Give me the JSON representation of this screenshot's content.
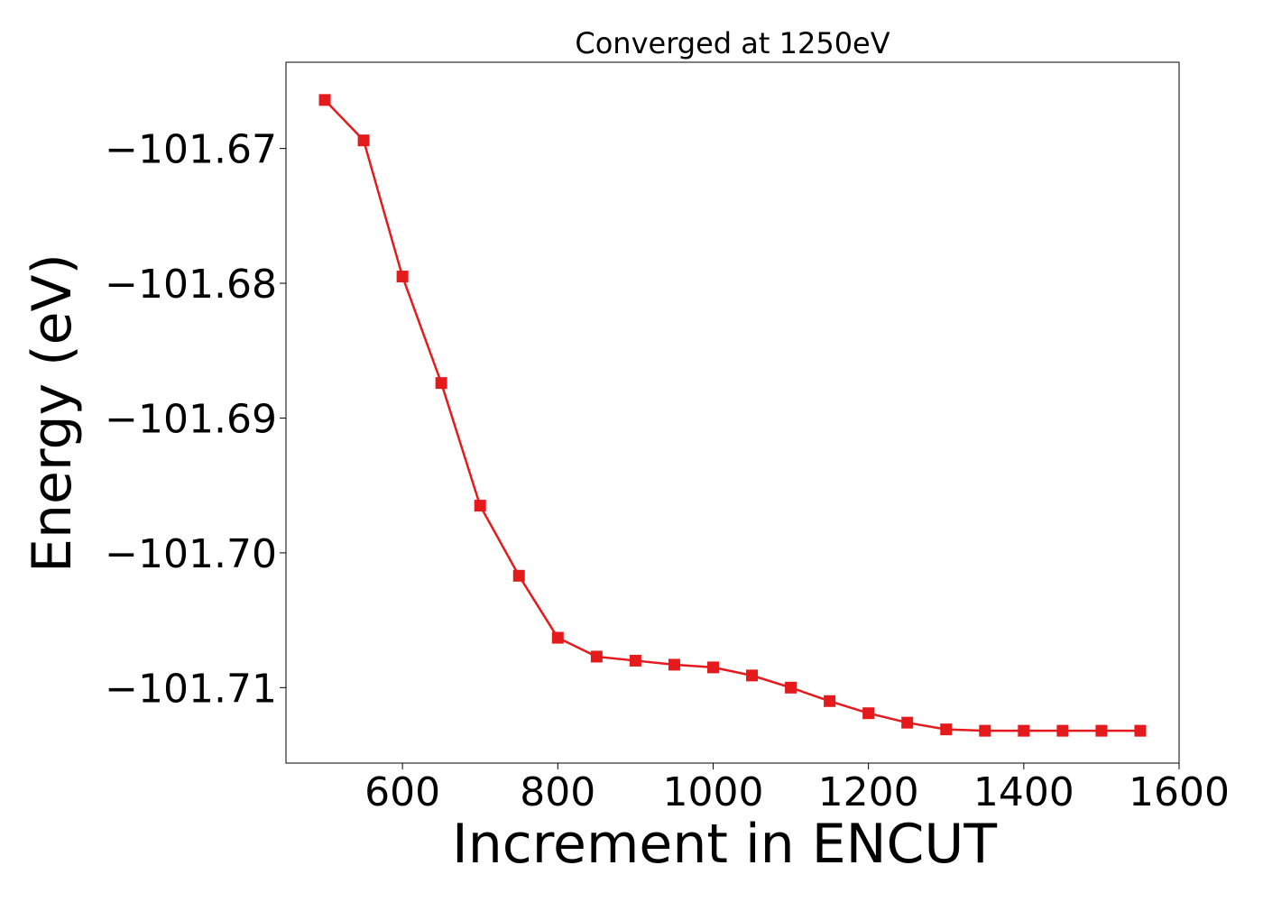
{
  "chart_data": {
    "type": "line",
    "title": "Converged at 1250eV",
    "xlabel": "Increment in ENCUT",
    "ylabel": "Energy (eV)",
    "xlim": [
      450,
      1600
    ],
    "ylim": [
      -101.7156,
      -101.6636
    ],
    "x_ticks": [
      600,
      800,
      1000,
      1200,
      1400,
      1600
    ],
    "x_tick_labels": [
      "600",
      "800",
      "1000",
      "1200",
      "1400",
      "1600"
    ],
    "y_ticks": [
      -101.67,
      -101.68,
      -101.69,
      -101.7,
      -101.71
    ],
    "y_tick_labels": [
      "−101.67",
      "−101.68",
      "−101.69",
      "−101.70",
      "−101.71"
    ],
    "grid": false,
    "series": [
      {
        "color": "#e41a1c",
        "marker": "square",
        "x": [
          500,
          550,
          600,
          650,
          700,
          750,
          800,
          850,
          900,
          950,
          1000,
          1050,
          1100,
          1150,
          1200,
          1250,
          1300,
          1350,
          1400,
          1450,
          1500,
          1550
        ],
        "y": [
          -101.6664,
          -101.6694,
          -101.6795,
          -101.6874,
          -101.6965,
          -101.7017,
          -101.7063,
          -101.7077,
          -101.708,
          -101.7083,
          -101.7085,
          -101.7091,
          -101.71,
          -101.711,
          -101.7119,
          -101.7126,
          -101.7131,
          -101.7132,
          -101.7132,
          -101.7132,
          -101.7132,
          -101.7132
        ]
      }
    ]
  }
}
